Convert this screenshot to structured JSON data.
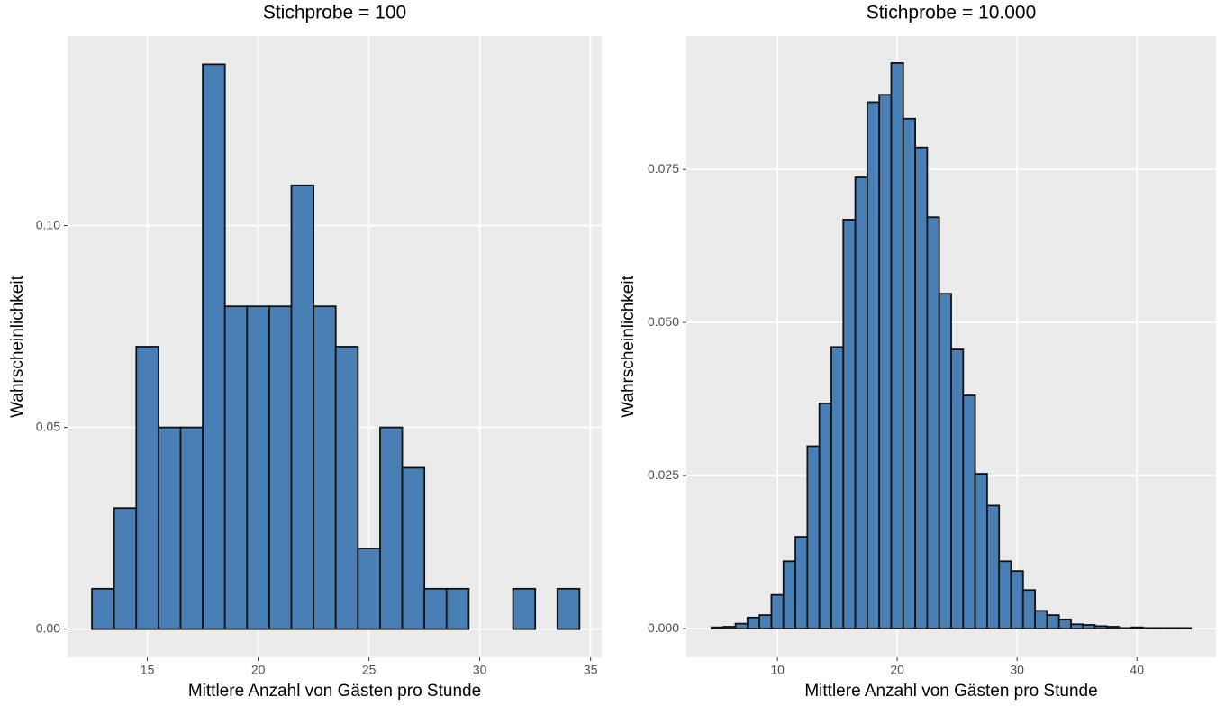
{
  "chart_data": [
    {
      "type": "histogram",
      "title": "Stichprobe = 100",
      "x_label": "Mittlere Anzahl von Gästen pro Stunde",
      "y_label": "Wahrscheinlichkeit",
      "bins": [
        12.5,
        13.5,
        14.5,
        15.5,
        16.5,
        17.5,
        18.5,
        19.5,
        20.5,
        21.5,
        22.5,
        23.5,
        24.5,
        25.5,
        26.5,
        27.5,
        28.5,
        29.5,
        30.5,
        31.5,
        32.5,
        33.5,
        34.5
      ],
      "values": [
        0.01,
        0.03,
        0.07,
        0.05,
        0.05,
        0.14,
        0.08,
        0.08,
        0.08,
        0.11,
        0.08,
        0.07,
        0.02,
        0.05,
        0.04,
        0.01,
        0.01,
        0,
        0,
        0.01,
        0,
        0.01
      ],
      "color": "#4a7fb5",
      "xlim": [
        11.4,
        35.5
      ],
      "ylim": [
        -0.007,
        0.147
      ],
      "xticks": [
        15,
        20,
        25,
        30,
        35
      ],
      "yticks": [
        {
          "value": 0,
          "label": "0.00"
        },
        {
          "value": 0.05,
          "label": "0.05"
        },
        {
          "value": 0.1,
          "label": "0.10"
        }
      ],
      "grid": true
    },
    {
      "type": "histogram",
      "title": "Stichprobe = 10.000",
      "x_label": "Mittlere Anzahl von Gästen pro Stunde",
      "y_label": "Wahrscheinlichkeit",
      "bins": [
        4.5,
        5.5,
        6.5,
        7.5,
        8.5,
        9.5,
        10.5,
        11.5,
        12.5,
        13.5,
        14.5,
        15.5,
        16.5,
        17.5,
        18.5,
        19.5,
        20.5,
        21.5,
        22.5,
        23.5,
        24.5,
        25.5,
        26.5,
        27.5,
        28.5,
        29.5,
        30.5,
        31.5,
        32.5,
        33.5,
        34.5,
        35.5,
        36.5,
        37.5,
        38.5,
        39.5,
        40.5,
        41.5,
        42.5,
        43.5,
        44.5
      ],
      "values": [
        0.0002,
        0.0003,
        0.0008,
        0.0018,
        0.0022,
        0.0055,
        0.011,
        0.015,
        0.0298,
        0.0368,
        0.046,
        0.0668,
        0.0737,
        0.086,
        0.0872,
        0.0924,
        0.0833,
        0.0786,
        0.0672,
        0.0547,
        0.0456,
        0.0381,
        0.0253,
        0.0201,
        0.011,
        0.0094,
        0.0063,
        0.0029,
        0.0022,
        0.0015,
        0.0007,
        0.0006,
        0.0004,
        0.0003,
        0.0001,
        0.0002,
        0.0001,
        0.0001,
        0.0001,
        0.0001
      ],
      "color": "#4a7fb5",
      "xlim": [
        2.4,
        46.6
      ],
      "ylim": [
        -0.0047,
        0.0968
      ],
      "xticks": [
        10,
        20,
        30,
        40
      ],
      "yticks": [
        {
          "value": 0,
          "label": "0.000"
        },
        {
          "value": 0.025,
          "label": "0.025"
        },
        {
          "value": 0.05,
          "label": "0.050"
        },
        {
          "value": 0.075,
          "label": "0.075"
        }
      ],
      "grid": true
    }
  ]
}
